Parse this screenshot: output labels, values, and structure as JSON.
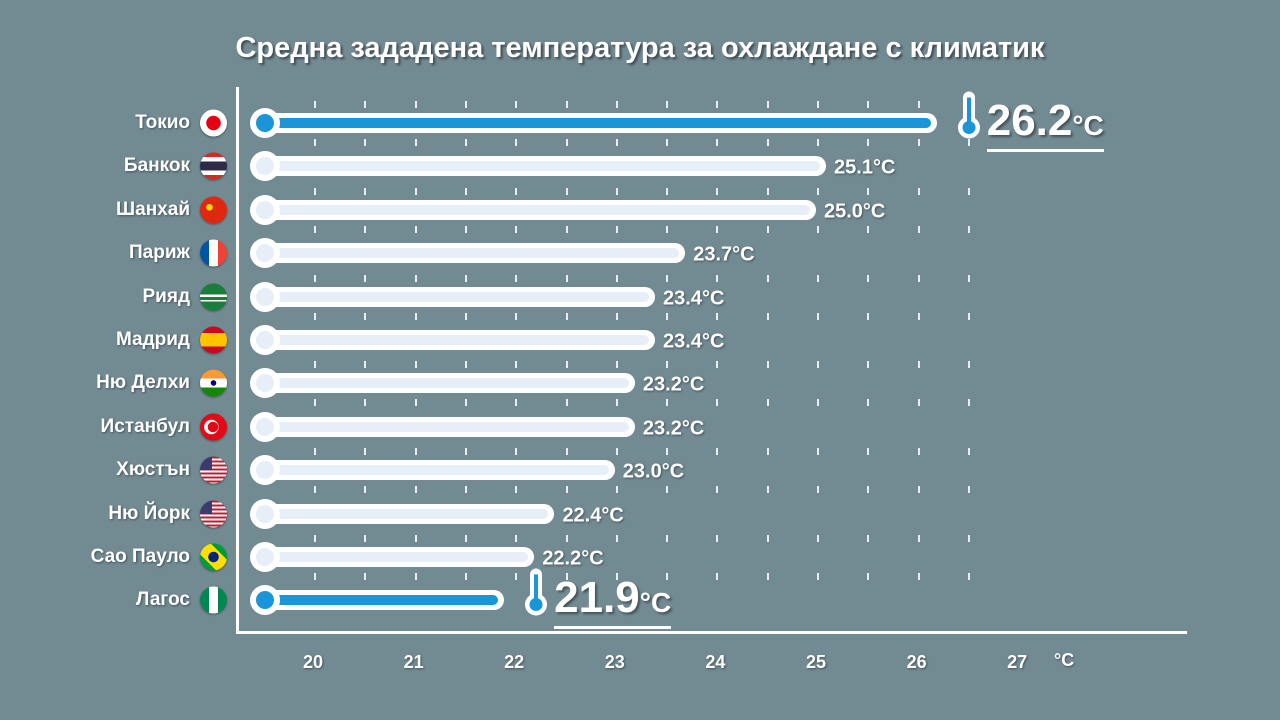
{
  "chart_data": {
    "type": "bar",
    "orientation": "horizontal",
    "title": "Средна зададена температура за охлаждане с климатик",
    "xlabel": "°C",
    "xlim": [
      19.5,
      28
    ],
    "xticks": [
      "20",
      "21",
      "22",
      "23",
      "24",
      "25",
      "26",
      "27"
    ],
    "categories": [
      "Токио",
      "Банкок",
      "Шанхай",
      "Париж",
      "Рияд",
      "Мадрид",
      "Ню Делхи",
      "Истанбул",
      "Хюстън",
      "Ню Йорк",
      "Сао Пауло",
      "Лагос"
    ],
    "flags": [
      "japan",
      "thailand",
      "china",
      "france",
      "saudi-arabia",
      "spain",
      "india",
      "turkey",
      "usa",
      "usa",
      "brazil",
      "nigeria"
    ],
    "values": [
      26.2,
      25.1,
      25.0,
      23.7,
      23.4,
      23.4,
      23.2,
      23.2,
      23.0,
      22.4,
      22.2,
      21.9
    ],
    "labels": [
      "26.2",
      "25.1°C",
      "25.0°C",
      "23.7°C",
      "23.4°C",
      "23.4°C",
      "23.2°C",
      "23.2°C",
      "23.0°C",
      "22.4°C",
      "22.2°C",
      "21.9"
    ],
    "highlight_unit": "°C",
    "highlighted": [
      0,
      11
    ],
    "highlight_color": "#1a96d8"
  }
}
